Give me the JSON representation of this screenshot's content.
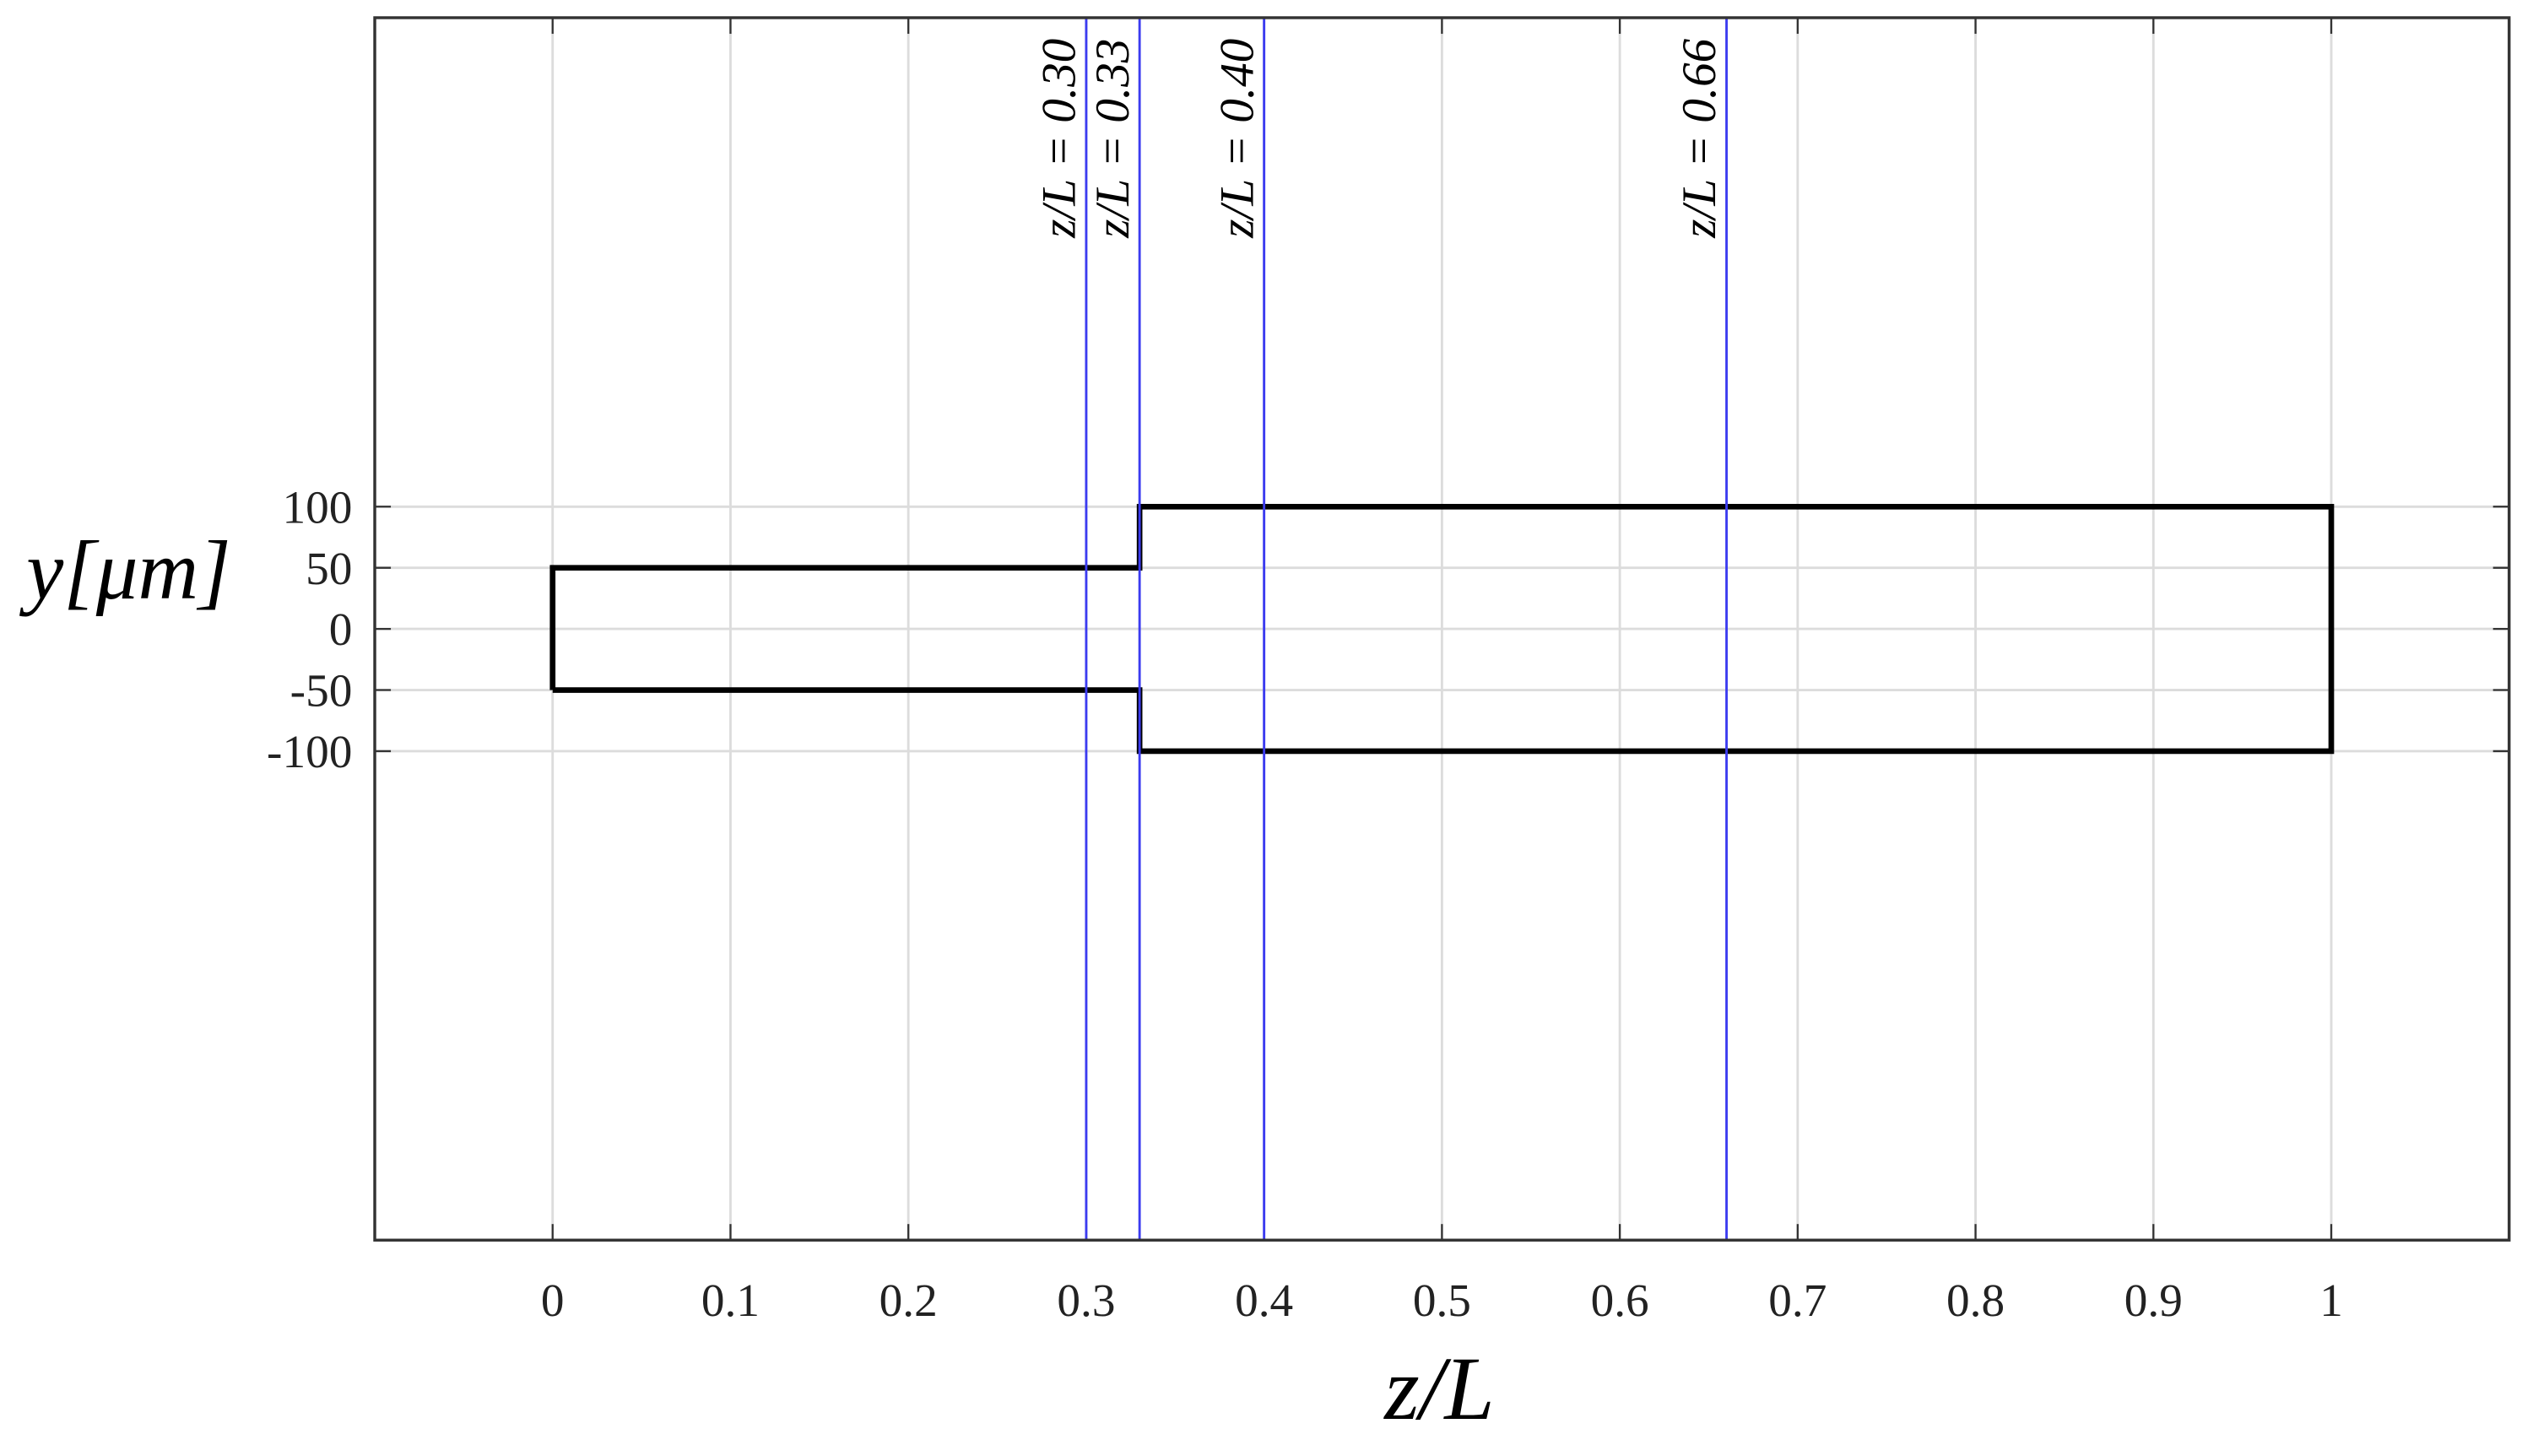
{
  "chart_data": {
    "type": "line",
    "xlabel": "z/L",
    "ylabel": "y[μm]",
    "x": [
      0,
      0,
      0.33,
      0.33,
      1,
      1,
      0.33,
      0.33,
      0
    ],
    "values": [
      -50,
      50,
      50,
      100,
      100,
      -100,
      -100,
      -50,
      -50
    ],
    "color": "#000000",
    "annotations": [
      {
        "value": 0.3,
        "label": "z/L = 0.30"
      },
      {
        "value": 0.33,
        "label": "z/L = 0.33"
      },
      {
        "value": 0.4,
        "label": "z/L = 0.40"
      },
      {
        "value": 0.66,
        "label": "z/L = 0.66"
      }
    ],
    "annotation_color": "#3b3bf0",
    "xlim": [
      -0.1,
      1.1
    ],
    "ylim": [
      -500,
      500
    ],
    "xticks": [
      0,
      0.1,
      0.2,
      0.3,
      0.4,
      0.5,
      0.6,
      0.7,
      0.8,
      0.9,
      1
    ],
    "yticks": [
      -100,
      -50,
      0,
      50,
      100
    ],
    "grid": true
  }
}
